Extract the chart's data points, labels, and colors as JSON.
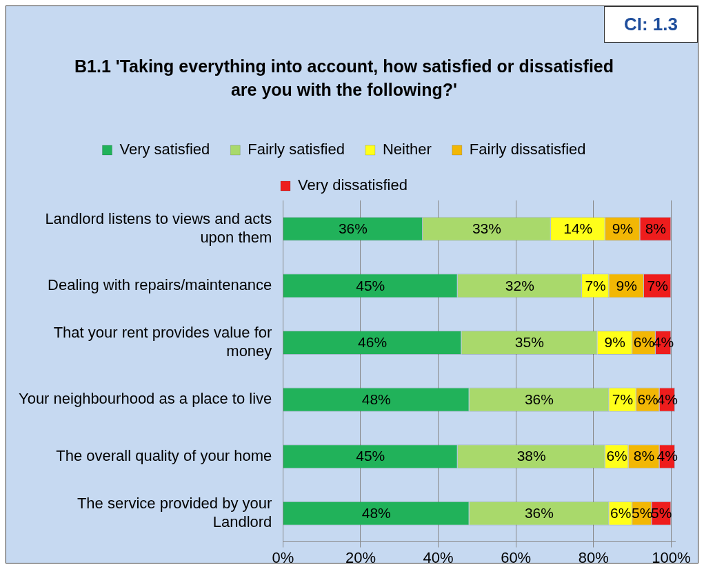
{
  "chart_data": {
    "type": "bar",
    "orientation": "horizontal",
    "stacked": true,
    "title": "B1.1 'Taking everything into account, how satisfied or dissatisfied are you with the following?'",
    "annotations": [
      "CI: 1.3"
    ],
    "categories": [
      "Landlord listens to views and acts upon them",
      "Dealing with repairs/maintenance",
      "That your rent provides value for money",
      "Your neighbourhood as a place to live",
      "The overall quality of your home",
      "The service provided by your Landlord"
    ],
    "series": [
      {
        "name": "Very satisfied",
        "color": "#21b25a",
        "values": [
          36,
          45,
          46,
          48,
          45,
          48
        ],
        "value_labels": [
          "36%",
          "45%",
          "46%",
          "48%",
          "45%",
          "48%"
        ]
      },
      {
        "name": "Fairly satisfied",
        "color": "#a9d96b",
        "values": [
          33,
          32,
          35,
          36,
          38,
          36
        ],
        "value_labels": [
          "33%",
          "32%",
          "35%",
          "36%",
          "38%",
          "36%"
        ]
      },
      {
        "name": "Neither",
        "color": "#ffff1a",
        "values": [
          14,
          7,
          9,
          7,
          6,
          6
        ],
        "value_labels": [
          "14%",
          "7%",
          "9%",
          "7%",
          "6%",
          "6%"
        ]
      },
      {
        "name": "Fairly dissatisfied",
        "color": "#f2b705",
        "values": [
          9,
          9,
          6,
          6,
          8,
          5
        ],
        "value_labels": [
          "9%",
          "9%",
          "6%",
          "6%",
          "8%",
          "5%"
        ]
      },
      {
        "name": "Very dissatisfied",
        "color": "#ee1d1d",
        "values": [
          8,
          7,
          4,
          4,
          4,
          5
        ],
        "value_labels": [
          "8%",
          "7%",
          "4%",
          "4%",
          "4%",
          "5%"
        ]
      }
    ],
    "xlim": [
      0,
      101
    ],
    "xticks": [
      {
        "value": 0,
        "label": "0%"
      },
      {
        "value": 20,
        "label": "20%"
      },
      {
        "value": 40,
        "label": "40%"
      },
      {
        "value": 60,
        "label": "60%"
      },
      {
        "value": 80,
        "label": "80%"
      },
      {
        "value": 100,
        "label": "100%"
      }
    ],
    "grid": "x",
    "legend": "top"
  }
}
